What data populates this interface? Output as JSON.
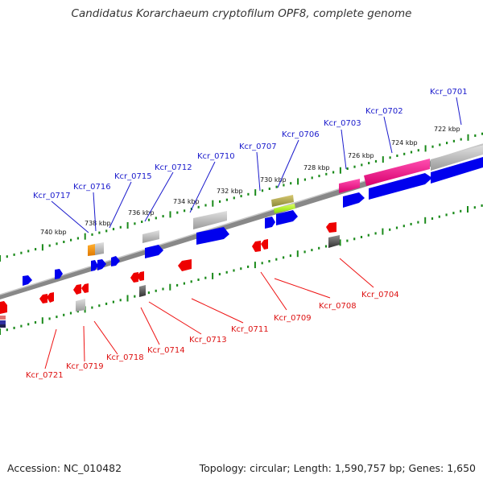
{
  "title": "Candidatus Korarchaeum cryptofilum OPF8, complete genome",
  "footer": {
    "accession": "Accession: NC_010482",
    "summary": "Topology: circular; Length: 1,590,757 bp; Genes: 1,650"
  },
  "colors": {
    "forward_cds": "#0000ee",
    "reverse_cds": "#ee0000",
    "rna": "#c0c0c0",
    "highlight": "#ff1493",
    "tick": "#1a8a1a",
    "backbone": "#888888"
  },
  "ruler_labels": [
    "722 kbp",
    "724 kbp",
    "726 kbp",
    "728 kbp",
    "730 kbp",
    "732 kbp",
    "734 kbp",
    "736 kbp",
    "738 kbp",
    "740 kbp"
  ],
  "forward_gene_labels": [
    "Kcr_0701",
    "Kcr_0702",
    "Kcr_0703",
    "Kcr_0706",
    "Kcr_0707",
    "Kcr_0710",
    "Kcr_0712",
    "Kcr_0715",
    "Kcr_0716",
    "Kcr_0717"
  ],
  "reverse_gene_labels": [
    "Kcr_0704",
    "Kcr_0708",
    "Kcr_0709",
    "Kcr_0711",
    "Kcr_0713",
    "Kcr_0714",
    "Kcr_0718",
    "Kcr_0719",
    "Kcr_0721"
  ]
}
